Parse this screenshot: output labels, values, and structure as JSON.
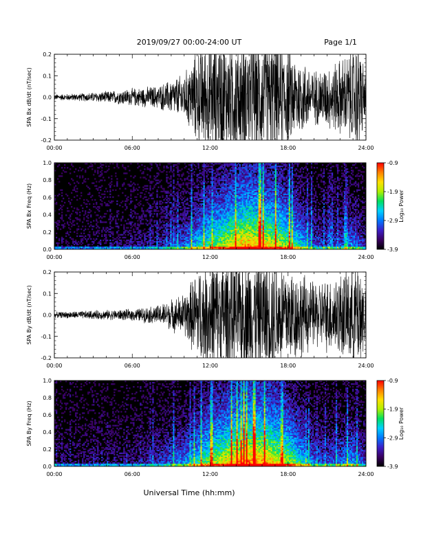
{
  "header": {
    "title": "2019/09/27  00:00-24:00 UT",
    "page": "Page 1/1"
  },
  "xaxis": {
    "label": "Universal Time (hh:mm)",
    "ticks": [
      "00:00",
      "06:00",
      "12:00",
      "18:00",
      "24:00"
    ],
    "range_hours": [
      0,
      24
    ]
  },
  "colorbar": {
    "label": "Log₁₀ Power",
    "ticks": [
      "-0.9",
      "-1.9",
      "-2.9",
      "-3.9"
    ],
    "range": [
      -3.9,
      -0.9
    ],
    "palette": [
      "#000000",
      "#3a0060",
      "#3c1fc8",
      "#0078ff",
      "#00d0ff",
      "#00e060",
      "#b0f000",
      "#ffe000",
      "#ff8000",
      "#ff0000"
    ]
  },
  "chart_data": [
    {
      "type": "line",
      "ylabel": "SPA Bx dB/dt (nT/sec)",
      "ylim": [
        -0.2,
        0.2
      ],
      "yticks": [
        "0.2",
        "0.1",
        "0.0",
        "-0.1",
        "-0.2"
      ],
      "description": "magnetometer time series",
      "envelope": {
        "hours": [
          0,
          2,
          4,
          6,
          8,
          9,
          10,
          10.5,
          11,
          12,
          14,
          16,
          17,
          18,
          19,
          20,
          21,
          22,
          23,
          23.5,
          24
        ],
        "amplitude": [
          0.015,
          0.02,
          0.03,
          0.045,
          0.06,
          0.09,
          0.12,
          0.18,
          0.25,
          0.3,
          0.3,
          0.3,
          0.3,
          0.25,
          0.2,
          0.14,
          0.16,
          0.2,
          0.25,
          0.3,
          0.1
        ]
      },
      "line_color": "#000000"
    },
    {
      "type": "heatmap",
      "ylabel": "SPA Bx Freq (Hz)",
      "ylim": [
        0,
        1.0
      ],
      "yticks": [
        "1.0",
        "0.8",
        "0.6",
        "0.4",
        "0.2",
        "0.0"
      ],
      "zlabel": "Log₁₀ Power",
      "zlim": [
        -3.9,
        -0.9
      ],
      "activity": {
        "hours": [
          0,
          2,
          4,
          6,
          8,
          10,
          11,
          12,
          13,
          14,
          15,
          16,
          17,
          18,
          19,
          20,
          21,
          22,
          23,
          24
        ],
        "level": [
          0.05,
          0.08,
          0.1,
          0.12,
          0.2,
          0.35,
          0.5,
          0.65,
          0.75,
          0.85,
          0.9,
          0.85,
          0.8,
          0.7,
          0.5,
          0.3,
          0.25,
          0.3,
          0.4,
          0.2
        ]
      }
    },
    {
      "type": "line",
      "ylabel": "SPA By dB/dt (nT/sec)",
      "ylim": [
        -0.2,
        0.2
      ],
      "yticks": [
        "0.2",
        "0.1",
        "0.0",
        "-0.1",
        "-0.2"
      ],
      "description": "magnetometer time series",
      "envelope": {
        "hours": [
          0,
          2,
          4,
          6,
          8,
          9,
          10,
          10.5,
          11,
          12,
          14,
          16,
          17,
          18,
          19,
          20,
          21,
          22,
          23,
          23.5,
          24
        ],
        "amplitude": [
          0.015,
          0.02,
          0.025,
          0.03,
          0.05,
          0.08,
          0.11,
          0.17,
          0.24,
          0.3,
          0.3,
          0.3,
          0.3,
          0.26,
          0.22,
          0.17,
          0.19,
          0.22,
          0.27,
          0.3,
          0.15
        ]
      },
      "line_color": "#000000"
    },
    {
      "type": "heatmap",
      "ylabel": "SPA By Freq (Hz)",
      "ylim": [
        0,
        1.0
      ],
      "yticks": [
        "1.0",
        "0.8",
        "0.6",
        "0.4",
        "0.2",
        "0.0"
      ],
      "zlabel": "Log₁₀ Power",
      "zlim": [
        -3.9,
        -0.9
      ],
      "activity": {
        "hours": [
          0,
          2,
          4,
          6,
          8,
          10,
          11,
          12,
          13,
          14,
          15,
          16,
          17,
          18,
          19,
          20,
          21,
          22,
          23,
          24
        ],
        "level": [
          0.12,
          0.12,
          0.12,
          0.15,
          0.25,
          0.4,
          0.55,
          0.7,
          0.8,
          0.9,
          0.95,
          0.92,
          0.85,
          0.75,
          0.55,
          0.35,
          0.3,
          0.35,
          0.45,
          0.25
        ]
      }
    }
  ]
}
